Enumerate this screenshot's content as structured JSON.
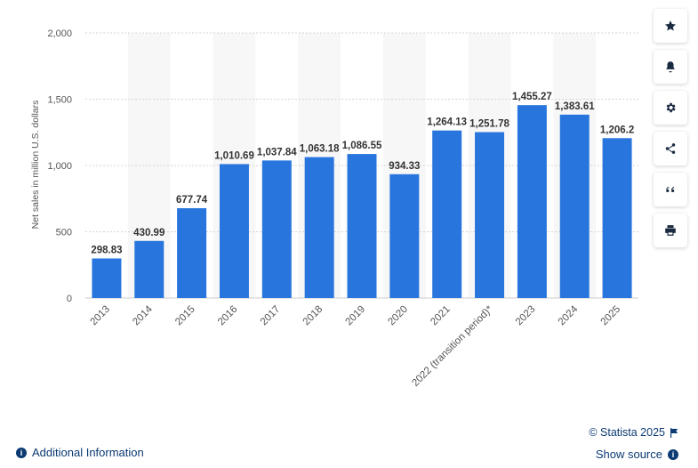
{
  "chart_data": {
    "type": "bar",
    "title": "",
    "xlabel": "",
    "ylabel": "Net sales in million U.S. dollars",
    "categories": [
      "2013",
      "2014",
      "2015",
      "2016",
      "2017",
      "2018",
      "2019",
      "2020",
      "2021",
      "2022 (transition period)*",
      "2023",
      "2024",
      "2025"
    ],
    "values": [
      298.83,
      430.99,
      677.74,
      1010.69,
      1037.84,
      1063.18,
      1086.55,
      934.33,
      1264.13,
      1251.78,
      1455.27,
      1383.61,
      1206.2
    ],
    "value_labels": [
      "298.83",
      "430.99",
      "677.74",
      "1,010.69",
      "1,037.84",
      "1,063.18",
      "1,086.55",
      "934.33",
      "1,264.13",
      "1,251.78",
      "1,455.27",
      "1,383.61",
      "1,206.2"
    ],
    "ylim": [
      0,
      2000
    ],
    "yticks": [
      0,
      500,
      1000,
      1500,
      2000
    ],
    "ytick_labels": [
      "0",
      "500",
      "1,000",
      "1,500",
      "2,000"
    ],
    "grid": true,
    "bar_color": "#2876dd"
  },
  "toolbar": {
    "buttons": [
      {
        "name": "favorite",
        "icon": "star-icon"
      },
      {
        "name": "notifications",
        "icon": "bell-icon"
      },
      {
        "name": "settings",
        "icon": "gear-icon"
      },
      {
        "name": "share",
        "icon": "share-icon"
      },
      {
        "name": "cite",
        "icon": "quote-icon"
      },
      {
        "name": "print",
        "icon": "print-icon"
      }
    ]
  },
  "footer": {
    "additional_info": "Additional Information",
    "credit": "© Statista 2025",
    "show_source": "Show source",
    "link_color": "#0b3a73"
  }
}
